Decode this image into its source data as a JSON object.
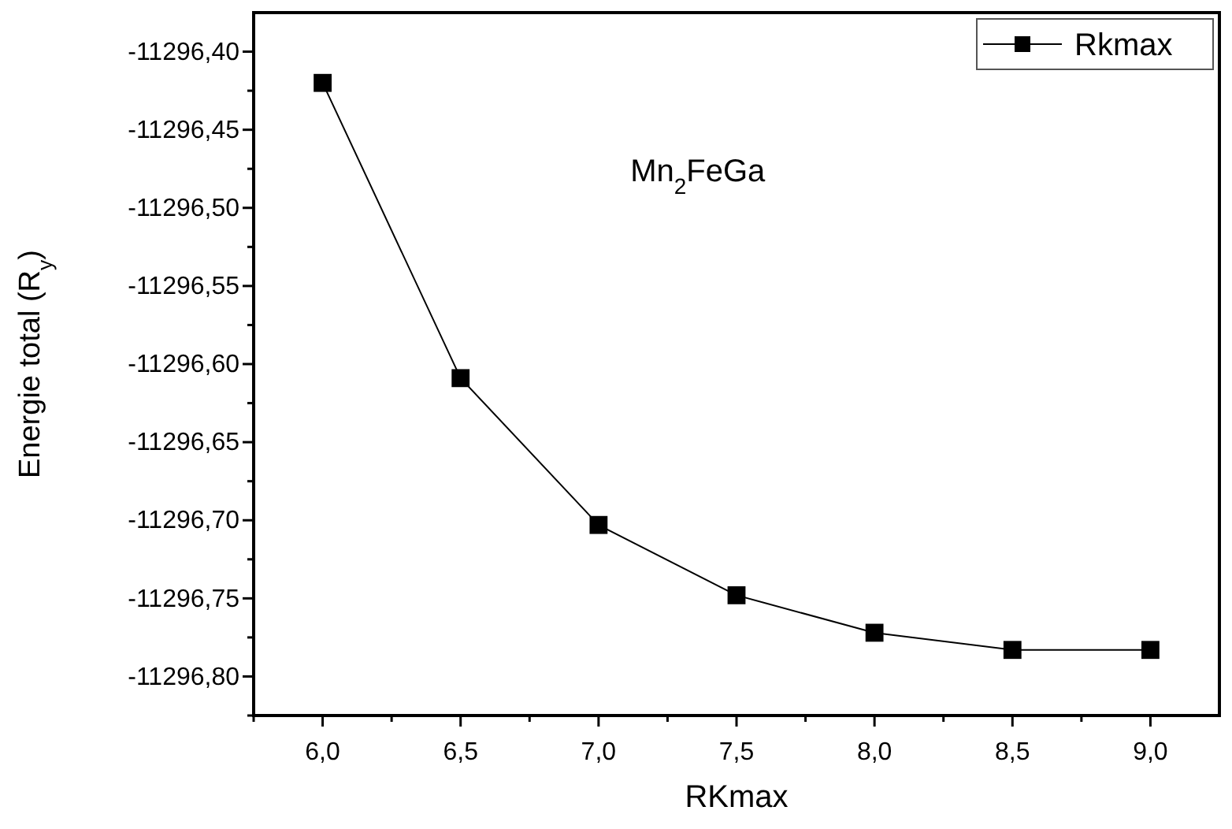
{
  "chart_data": {
    "type": "line",
    "xlabel": "RKmax",
    "ylabel": "Energie total (R$_{y}$)",
    "annotations": [
      "Mn$_{2}$FeGa"
    ],
    "x": [
      6.0,
      6.5,
      7.0,
      7.5,
      8.0,
      8.5,
      9.0
    ],
    "series": [
      {
        "name": "Rkmax",
        "color": "#000000",
        "values": [
          -11296.42,
          -11296.609,
          -11296.703,
          -11296.748,
          -11296.772,
          -11296.783,
          -11296.783
        ]
      }
    ],
    "marker": "square",
    "line_style": "solid",
    "legend": "top right",
    "grid": false,
    "xlim": [
      5.75,
      9.25
    ],
    "ylim": [
      -11296.825,
      -11296.375
    ],
    "xticks": [
      {
        "value": 5.75,
        "label": null
      },
      {
        "value": 6.0,
        "label": "6,0"
      },
      {
        "value": 6.25,
        "label": null
      },
      {
        "value": 6.5,
        "label": "6,5"
      },
      {
        "value": 6.75,
        "label": null
      },
      {
        "value": 7.0,
        "label": "7,0"
      },
      {
        "value": 7.25,
        "label": null
      },
      {
        "value": 7.5,
        "label": "7,5"
      },
      {
        "value": 7.75,
        "label": null
      },
      {
        "value": 8.0,
        "label": "8,0"
      },
      {
        "value": 8.25,
        "label": null
      },
      {
        "value": 8.5,
        "label": "8,5"
      },
      {
        "value": 8.75,
        "label": null
      },
      {
        "value": 9.0,
        "label": "9,0"
      }
    ],
    "yticks": [
      {
        "value": -11296.825,
        "label": null
      },
      {
        "value": -11296.8,
        "label": "-11296,80"
      },
      {
        "value": -11296.775,
        "label": null
      },
      {
        "value": -11296.75,
        "label": "-11296,75"
      },
      {
        "value": -11296.725,
        "label": null
      },
      {
        "value": -11296.7,
        "label": "-11296,70"
      },
      {
        "value": -11296.675,
        "label": null
      },
      {
        "value": -11296.65,
        "label": "-11296,65"
      },
      {
        "value": -11296.625,
        "label": null
      },
      {
        "value": -11296.6,
        "label": "-11296,60"
      },
      {
        "value": -11296.575,
        "label": null
      },
      {
        "value": -11296.55,
        "label": "-11296,55"
      },
      {
        "value": -11296.525,
        "label": null
      },
      {
        "value": -11296.5,
        "label": "-11296,50"
      },
      {
        "value": -11296.475,
        "label": null
      },
      {
        "value": -11296.45,
        "label": "-11296,45"
      },
      {
        "value": -11296.425,
        "label": null
      },
      {
        "value": -11296.4,
        "label": "-11296,40"
      }
    ]
  }
}
